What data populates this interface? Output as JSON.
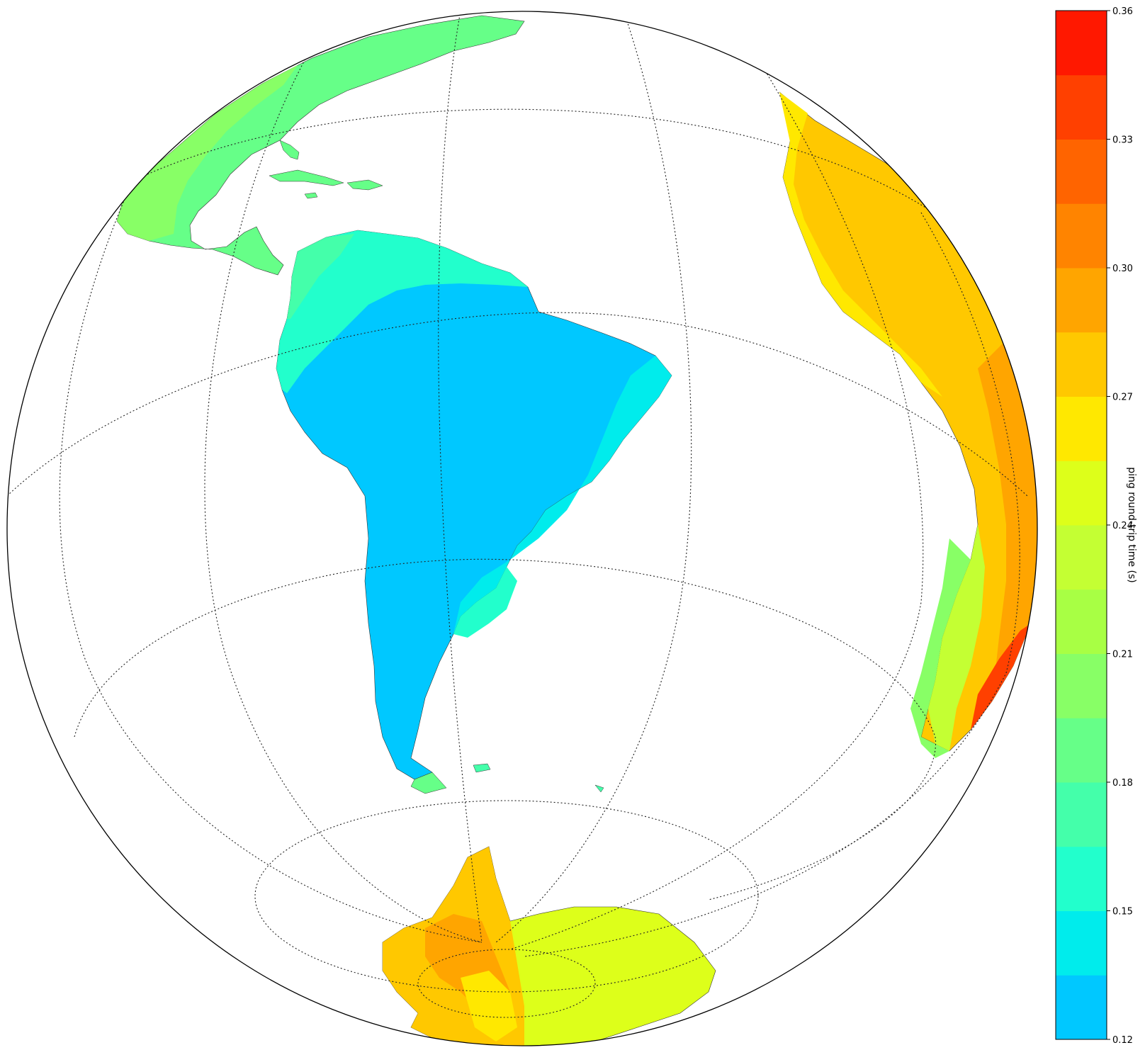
{
  "map": {
    "projection": "orthographic",
    "graticule": "dotted",
    "regions_visible": [
      "North America",
      "Central America",
      "Caribbean",
      "South America",
      "West Africa",
      "Southern Africa",
      "Antarctica"
    ]
  },
  "colorbar": {
    "label": "ping round-trip time (s)",
    "min": 0.12,
    "max": 0.36,
    "tick_labels": [
      "0.12",
      "0.15",
      "0.18",
      "0.21",
      "0.24",
      "0.27",
      "0.30",
      "0.33",
      "0.36"
    ],
    "levels": [
      {
        "from": 0.12,
        "to": 0.135,
        "color": "#00c8ff"
      },
      {
        "from": 0.135,
        "to": 0.15,
        "color": "#00ecec"
      },
      {
        "from": 0.15,
        "to": 0.165,
        "color": "#22ffcc"
      },
      {
        "from": 0.165,
        "to": 0.18,
        "color": "#44ffaa"
      },
      {
        "from": 0.18,
        "to": 0.195,
        "color": "#66ff88"
      },
      {
        "from": 0.195,
        "to": 0.21,
        "color": "#88ff66"
      },
      {
        "from": 0.21,
        "to": 0.225,
        "color": "#a8ff44"
      },
      {
        "from": 0.225,
        "to": 0.24,
        "color": "#c4ff33"
      },
      {
        "from": 0.24,
        "to": 0.255,
        "color": "#ddff1a"
      },
      {
        "from": 0.255,
        "to": 0.27,
        "color": "#ffe800"
      },
      {
        "from": 0.27,
        "to": 0.285,
        "color": "#ffc800"
      },
      {
        "from": 0.285,
        "to": 0.3,
        "color": "#ffa500"
      },
      {
        "from": 0.3,
        "to": 0.315,
        "color": "#ff8400"
      },
      {
        "from": 0.315,
        "to": 0.33,
        "color": "#ff6400"
      },
      {
        "from": 0.33,
        "to": 0.345,
        "color": "#ff4000"
      },
      {
        "from": 0.345,
        "to": 0.36,
        "color": "#ff1800"
      }
    ]
  }
}
